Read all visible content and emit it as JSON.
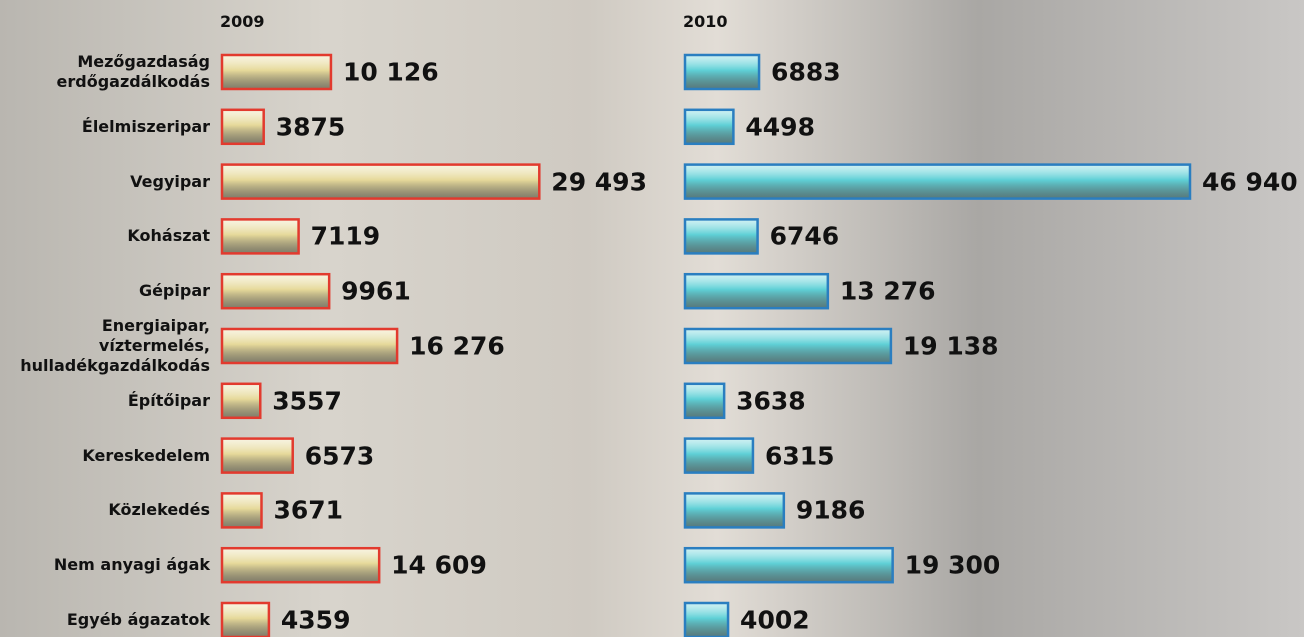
{
  "chart_data": {
    "type": "bar",
    "categories": [
      "Mezőgazdaság\nerdőgazdálkodás",
      "Élelmiszeripar",
      "Vegyipar",
      "Kohászat",
      "Gépipar",
      "Energiaipar, víztermelés,\nhulladékgazdálkodás",
      "Építőipar",
      "Kereskedelem",
      "Közlekedés",
      "Nem anyagi ágak",
      "Egyéb ágazatok"
    ],
    "series": [
      {
        "name": "2009",
        "color": "#e6d99a",
        "edgecolor": "#e23a2e",
        "values": [
          10126,
          3875,
          29493,
          7119,
          9961,
          16276,
          3557,
          6573,
          3671,
          14609,
          4359
        ],
        "value_labels": [
          "10 126",
          "3875",
          "29 493",
          "7119",
          "9961",
          "16 276",
          "3557",
          "6573",
          "3671",
          "14 609",
          "4359"
        ]
      },
      {
        "name": "2010",
        "color": "#5fd0d6",
        "edgecolor": "#2a7ec0",
        "values": [
          6883,
          4498,
          46940,
          6746,
          13276,
          19138,
          3638,
          6315,
          9186,
          19300,
          4002
        ],
        "value_labels": [
          "6883",
          "4498",
          "46 940",
          "6746",
          "13 276",
          "19 138",
          "3638",
          "6315",
          "9186",
          "19 300",
          "4002"
        ]
      }
    ]
  }
}
